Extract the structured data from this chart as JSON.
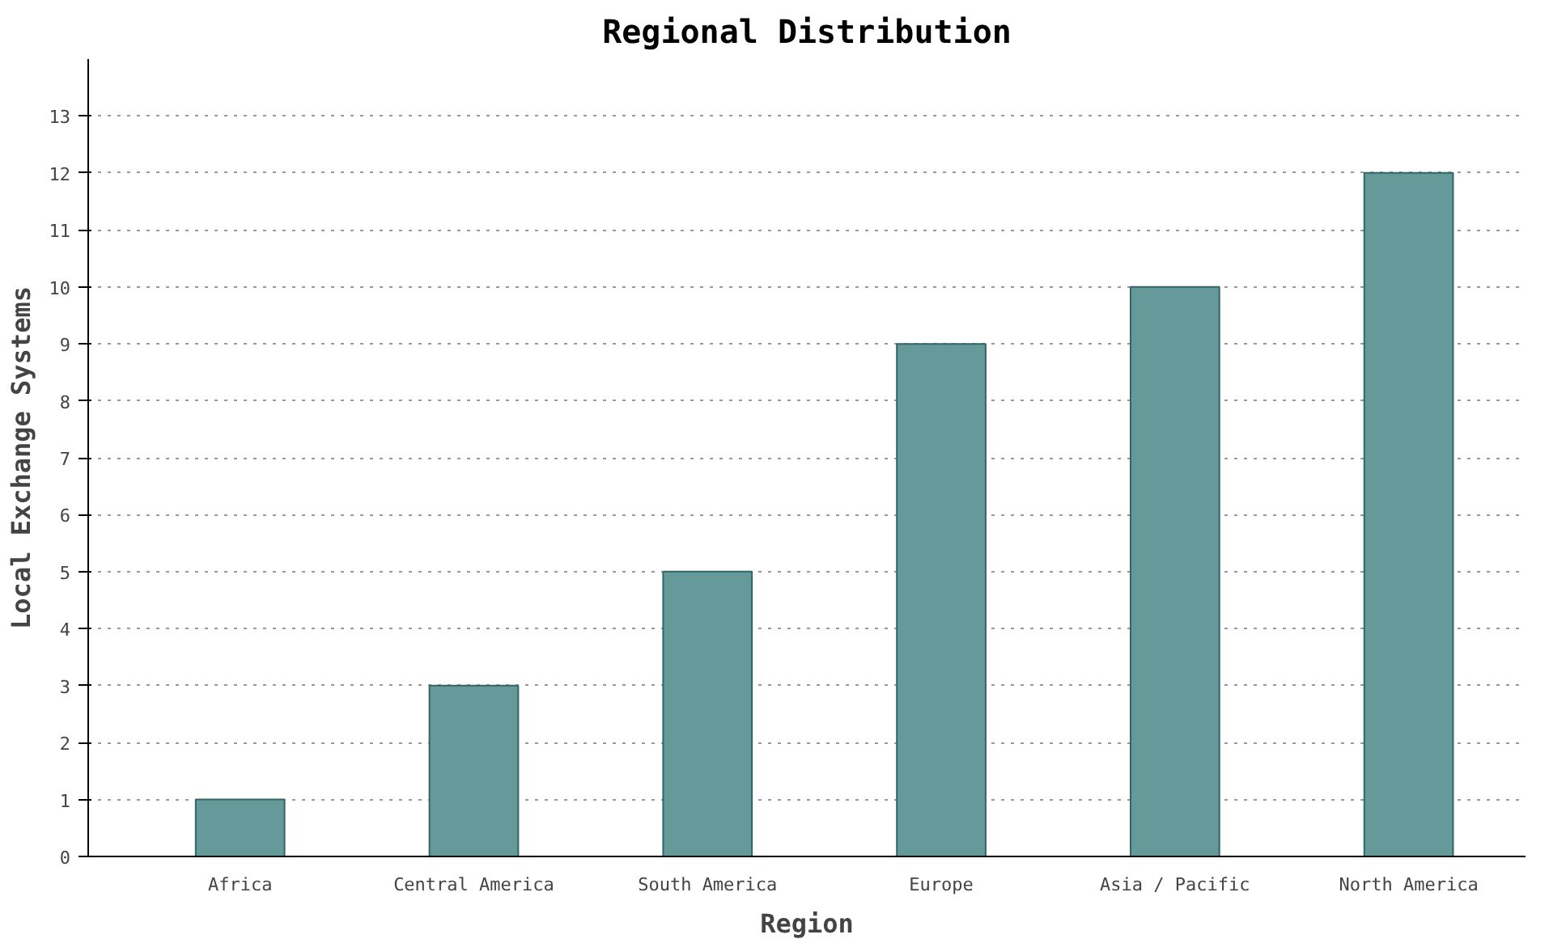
{
  "chart_data": {
    "type": "bar",
    "title": "Regional Distribution",
    "xlabel": "Region",
    "ylabel": "Local Exchange Systems",
    "categories": [
      "Africa",
      "Central America",
      "South America",
      "Europe",
      "Asia / Pacific",
      "North America"
    ],
    "values": [
      1,
      3,
      5,
      9,
      10,
      12
    ],
    "color": "#669999",
    "ylim": [
      0,
      14
    ],
    "yticks": [
      0,
      1,
      2,
      3,
      4,
      5,
      6,
      7,
      8,
      9,
      10,
      11,
      12,
      13
    ],
    "grid": "y"
  }
}
